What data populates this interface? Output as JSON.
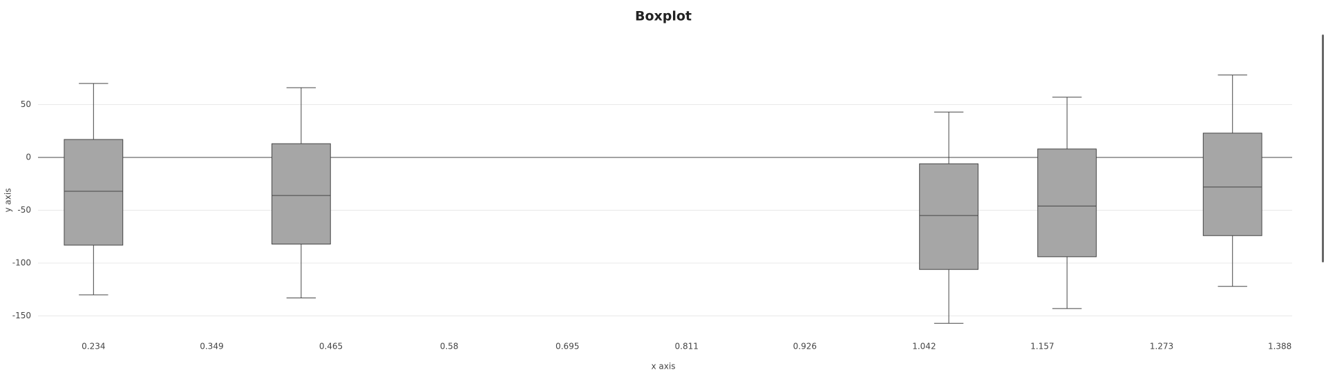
{
  "chart_data": {
    "type": "box",
    "title": "Boxplot",
    "x_label": "x axis",
    "y_label": "y axis",
    "color": "#a6a6a6",
    "boxes": [
      {
        "x": 0.234,
        "min": -130,
        "q1": -83,
        "median": -32,
        "q3": 17,
        "max": 70
      },
      {
        "x": 0.436,
        "min": -133,
        "q1": -82,
        "median": -36,
        "q3": 13,
        "max": 66
      },
      {
        "x": 1.066,
        "min": -157,
        "q1": -106,
        "median": -55,
        "q3": -6,
        "max": 43
      },
      {
        "x": 1.181,
        "min": -143,
        "q1": -94,
        "median": -46,
        "q3": 8,
        "max": 57
      },
      {
        "x": 1.342,
        "min": -122,
        "q1": -74,
        "median": -28,
        "q3": 23,
        "max": 78
      }
    ],
    "box_width": 0.057,
    "xlim": [
      0.18,
      1.4
    ],
    "xticks": [
      0.234,
      0.349,
      0.465,
      0.58,
      0.695,
      0.811,
      0.926,
      1.042,
      1.157,
      1.273,
      1.388
    ],
    "ylim": [
      -165,
      100
    ],
    "yticks": [
      -150,
      -100,
      -50,
      0,
      50
    ],
    "grid": true
  }
}
